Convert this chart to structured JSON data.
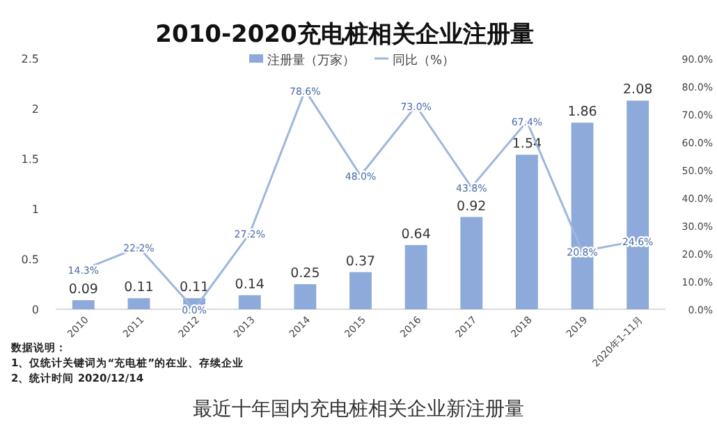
{
  "chart_data": {
    "type": "bar",
    "title": "2010-2020充电桩相关企业注册量",
    "categories": [
      "2010",
      "2011",
      "2012",
      "2013",
      "2014",
      "2015",
      "2016",
      "2017",
      "2018",
      "2019",
      "2020年1-11月"
    ],
    "series": [
      {
        "name": "注册量（万家）",
        "color": "#8eaadb",
        "values": [
          0.09,
          0.11,
          0.11,
          0.14,
          0.25,
          0.37,
          0.64,
          0.92,
          1.54,
          1.86,
          2.08
        ],
        "value_labels": [
          "0.09",
          "0.11",
          "0.11",
          "0.14",
          "0.25",
          "0.37",
          "0.64",
          "0.92",
          "1.54",
          "1.86",
          "2.08"
        ]
      },
      {
        "name": "同比（%）",
        "type": "line",
        "axis": "y2",
        "color": "#9db7dc",
        "values": [
          14.3,
          22.2,
          0.0,
          27.2,
          78.6,
          48.0,
          73.0,
          43.8,
          67.4,
          20.8,
          24.6
        ],
        "value_labels": [
          "14.3%",
          "22.2%",
          "0.0%",
          "27.2%",
          "78.6%",
          "48.0%",
          "73.0%",
          "43.8%",
          "67.4%",
          "20.8%",
          "24.6%"
        ]
      }
    ],
    "ylim": [
      0,
      2.5
    ],
    "yticks": [
      0,
      0.5,
      1,
      1.5,
      2,
      2.5
    ],
    "y2lim": [
      0,
      90
    ],
    "y2ticks": [
      {
        "value": 0,
        "label": "0.0%"
      },
      {
        "value": 10,
        "label": "10.0%"
      },
      {
        "value": 20,
        "label": "20.0%"
      },
      {
        "value": 30,
        "label": "30.0%"
      },
      {
        "value": 40,
        "label": "40.0%"
      },
      {
        "value": 50,
        "label": "50.0%"
      },
      {
        "value": 60,
        "label": "60.0%"
      },
      {
        "value": 70,
        "label": "70.0%"
      },
      {
        "value": 80,
        "label": "80.0%"
      },
      {
        "value": 90,
        "label": "90.0%"
      }
    ],
    "legend": "top",
    "marker": "none",
    "line_style": "solid",
    "annotations": [
      "数据说明：",
      "1、仅统计关键词为“充电桩”的在业、存续企业",
      "2、统计时间 2020/12/14",
      "最近十年国内充电桩相关企业新注册量"
    ]
  }
}
